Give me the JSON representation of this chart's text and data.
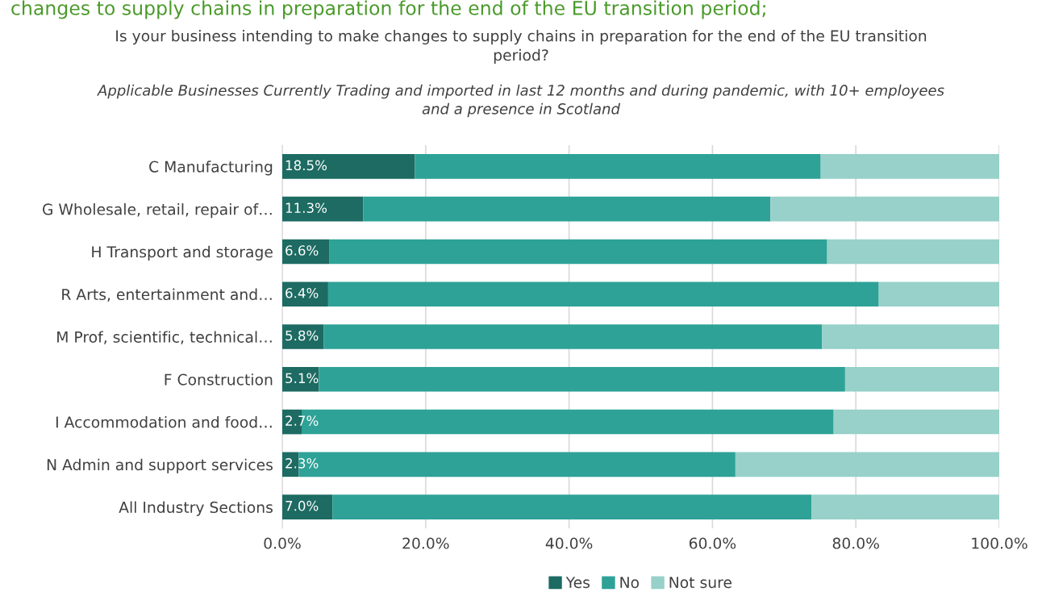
{
  "chart_data": {
    "type": "bar",
    "orientation": "horizontal",
    "stacked": true,
    "title": "Is your business intending to make changes to supply chains in preparation for the end of the EU transition period?",
    "subtitle": "Applicable Businesses Currently Trading and imported in last 12 months and during pandemic, with 10+ employees and a presence in Scotland",
    "annotations": [
      "changes to supply chains in preparation for the end of the EU transition period;"
    ],
    "categories": [
      "C Manufacturing",
      "G Wholesale, retail, repair of…",
      "H Transport and storage",
      "R Arts, entertainment and…",
      "M Prof, scientific, technical…",
      "F Construction",
      "I Accommodation and food…",
      "N Admin and support services",
      "All Industry Sections"
    ],
    "series": [
      {
        "name": "Yes",
        "color": "#1d6b62",
        "values": [
          18.5,
          11.3,
          6.6,
          6.4,
          5.8,
          5.1,
          2.7,
          2.3,
          7.0
        ],
        "value_labels": [
          "18.5%",
          "11.3%",
          "6.6%",
          "6.4%",
          "5.8%",
          "5.1%",
          "2.7%",
          "2.3%",
          "7.0%"
        ]
      },
      {
        "name": "No",
        "color": "#2ea297",
        "values": [
          56.6,
          56.8,
          69.4,
          76.8,
          69.5,
          73.4,
          74.2,
          60.9,
          66.8
        ]
      },
      {
        "name": "Not sure",
        "color": "#97d1c9",
        "values": [
          24.9,
          31.9,
          24.0,
          16.8,
          24.7,
          21.5,
          23.1,
          36.8,
          26.2
        ]
      }
    ],
    "xlim": [
      0,
      100
    ],
    "xticks": [
      {
        "value": 0,
        "label": "0.0%"
      },
      {
        "value": 20,
        "label": "20.0%"
      },
      {
        "value": 40,
        "label": "40.0%"
      },
      {
        "value": 60,
        "label": "60.0%"
      },
      {
        "value": 80,
        "label": "80.0%"
      },
      {
        "value": 100,
        "label": "100.0%"
      }
    ],
    "grid": "x",
    "legend": "bottom"
  }
}
